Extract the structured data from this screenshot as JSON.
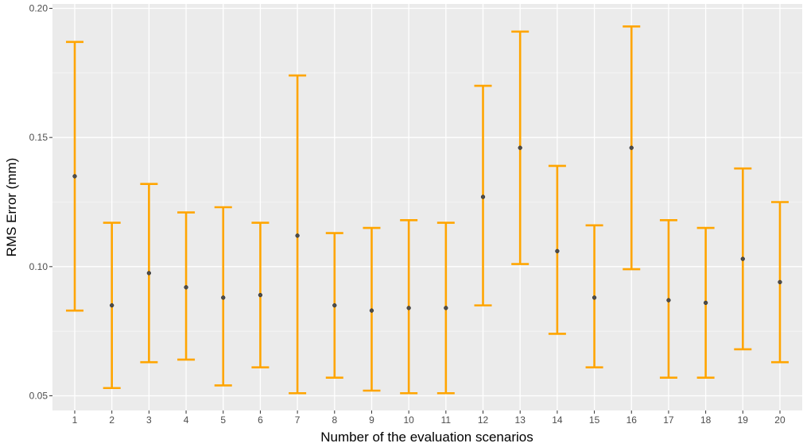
{
  "chart_data": {
    "type": "scatter",
    "subtype": "errorbar",
    "title": "",
    "xlabel": "Number of the evaluation scenarios",
    "ylabel": "RMS Error (mm)",
    "ylim": [
      0.045,
      0.2
    ],
    "yticks": [
      0.05,
      0.1,
      0.15,
      0.2
    ],
    "ytick_labels": [
      "0.05",
      "0.10",
      "0.15",
      "0.20"
    ],
    "categories": [
      "1",
      "2",
      "3",
      "4",
      "5",
      "6",
      "7",
      "8",
      "9",
      "10",
      "11",
      "12",
      "13",
      "14",
      "15",
      "16",
      "17",
      "18",
      "19",
      "20"
    ],
    "mean": [
      0.135,
      0.085,
      0.0975,
      0.092,
      0.088,
      0.089,
      0.112,
      0.085,
      0.083,
      0.084,
      0.084,
      0.127,
      0.146,
      0.106,
      0.088,
      0.146,
      0.087,
      0.086,
      0.103,
      0.094
    ],
    "lower": [
      0.083,
      0.053,
      0.063,
      0.064,
      0.054,
      0.061,
      0.051,
      0.057,
      0.052,
      0.051,
      0.051,
      0.085,
      0.101,
      0.074,
      0.061,
      0.099,
      0.057,
      0.057,
      0.068,
      0.063
    ],
    "upper": [
      0.187,
      0.117,
      0.132,
      0.121,
      0.123,
      0.117,
      0.174,
      0.113,
      0.115,
      0.118,
      0.117,
      0.17,
      0.191,
      0.139,
      0.116,
      0.193,
      0.118,
      0.115,
      0.138,
      0.125
    ],
    "grid": true,
    "legend": "none",
    "colors": {
      "panel": "#ebebeb",
      "grid_major": "#ffffff",
      "errorbar": "#ffa500",
      "point": "#4d4d4d"
    }
  }
}
